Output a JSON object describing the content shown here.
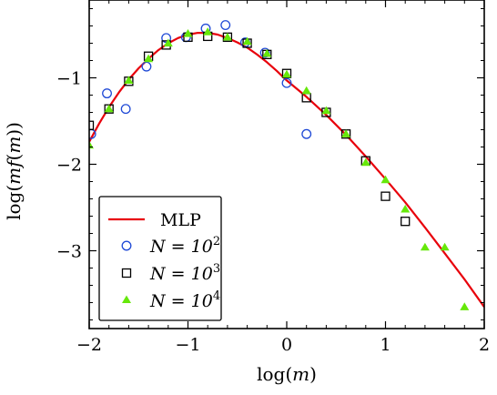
{
  "chart_data": {
    "type": "scatter",
    "title": "",
    "xlabel": "log(m)",
    "ylabel": "log(mf(m))",
    "xlim": [
      -2,
      2
    ],
    "ylim": [
      -3.9,
      -0.1
    ],
    "x_ticks": [
      -2,
      -1,
      0,
      1,
      2
    ],
    "x_tick_labels": [
      "−2",
      "−1",
      "0",
      "1",
      "2"
    ],
    "y_ticks": [
      -1,
      -2,
      -3
    ],
    "y_tick_labels": [
      "−1",
      "−2",
      "−3"
    ],
    "grid": false,
    "legend_position": "bottom-left",
    "legend": [
      {
        "label": "MLP"
      },
      {
        "label": "N = 10",
        "exp": "2"
      },
      {
        "label": "N = 10",
        "exp": "3"
      },
      {
        "label": "N = 10",
        "exp": "4"
      }
    ],
    "series": [
      {
        "marker": "line",
        "color": "#e8000b",
        "x": [
          -2.0,
          -1.9,
          -1.8,
          -1.7,
          -1.6,
          -1.5,
          -1.4,
          -1.3,
          -1.2,
          -1.1,
          -1.0,
          -0.9,
          -0.8,
          -0.7,
          -0.6,
          -0.5,
          -0.4,
          -0.3,
          -0.2,
          -0.1,
          0.0,
          0.2,
          0.4,
          0.6,
          0.8,
          1.0,
          1.2,
          1.4,
          1.6,
          1.8,
          2.0
        ],
        "y": [
          -1.74,
          -1.53,
          -1.34,
          -1.17,
          -1.02,
          -0.89,
          -0.78,
          -0.68,
          -0.6,
          -0.54,
          -0.5,
          -0.48,
          -0.48,
          -0.5,
          -0.54,
          -0.59,
          -0.65,
          -0.73,
          -0.82,
          -0.92,
          -1.03,
          -1.22,
          -1.43,
          -1.66,
          -1.91,
          -2.17,
          -2.44,
          -2.73,
          -3.03,
          -3.33,
          -3.65
        ]
      },
      {
        "marker": "circle",
        "color": "#1f49d6",
        "x": [
          -1.98,
          -1.82,
          -1.63,
          -1.42,
          -1.22,
          -1.02,
          -0.82,
          -0.62,
          -0.42,
          -0.22,
          0.0,
          0.2
        ],
        "y": [
          -1.65,
          -1.18,
          -1.36,
          -0.87,
          -0.54,
          -0.53,
          -0.43,
          -0.39,
          -0.59,
          -0.71,
          -1.06,
          -1.65
        ]
      },
      {
        "marker": "square",
        "color": "#000000",
        "x": [
          -2.0,
          -1.8,
          -1.6,
          -1.4,
          -1.22,
          -1.0,
          -0.8,
          -0.6,
          -0.4,
          -0.2,
          0.0,
          0.2,
          0.4,
          0.6,
          0.8,
          1.0,
          1.2
        ],
        "y": [
          -1.55,
          -1.36,
          -1.04,
          -0.75,
          -0.62,
          -0.53,
          -0.52,
          -0.53,
          -0.6,
          -0.73,
          -0.95,
          -1.23,
          -1.4,
          -1.65,
          -1.96,
          -2.37,
          -2.66
        ]
      },
      {
        "marker": "triangle",
        "color": "#66e80a",
        "x": [
          -2.0,
          -1.8,
          -1.6,
          -1.4,
          -1.2,
          -1.0,
          -0.8,
          -0.6,
          -0.4,
          -0.2,
          0.0,
          0.2,
          0.4,
          0.6,
          0.8,
          1.0,
          1.2,
          1.4,
          1.6,
          1.8
        ],
        "y": [
          -1.78,
          -1.36,
          -1.03,
          -0.78,
          -0.6,
          -0.49,
          -0.47,
          -0.53,
          -0.58,
          -0.72,
          -0.96,
          -1.15,
          -1.38,
          -1.65,
          -1.98,
          -2.18,
          -2.52,
          -2.96,
          -2.96,
          -3.65
        ]
      }
    ]
  }
}
